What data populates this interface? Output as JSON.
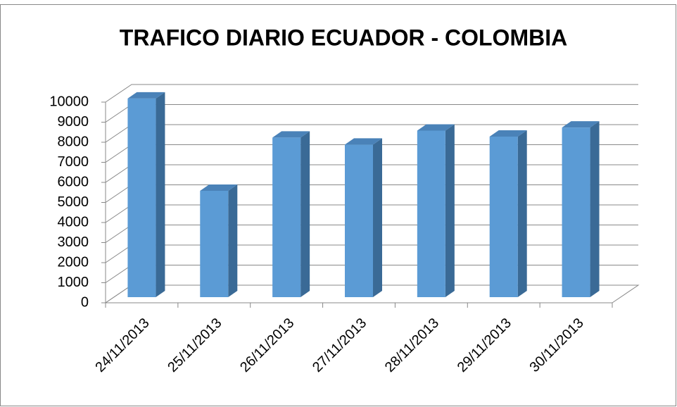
{
  "chart_data": {
    "type": "bar3d",
    "title": "TRAFICO DIARIO ECUADOR - COLOMBIA",
    "categories": [
      "24/11/2013",
      "25/11/2013",
      "26/11/2013",
      "27/11/2013",
      "28/11/2013",
      "29/11/2013",
      "30/11/2013"
    ],
    "values": [
      9900,
      5300,
      7950,
      7600,
      8300,
      8000,
      8450
    ],
    "color": "#5b9bd5",
    "ylim": [
      0,
      10000
    ],
    "yticks": [
      0,
      1000,
      2000,
      3000,
      4000,
      5000,
      6000,
      7000,
      8000,
      9000,
      10000
    ],
    "grid": true
  }
}
